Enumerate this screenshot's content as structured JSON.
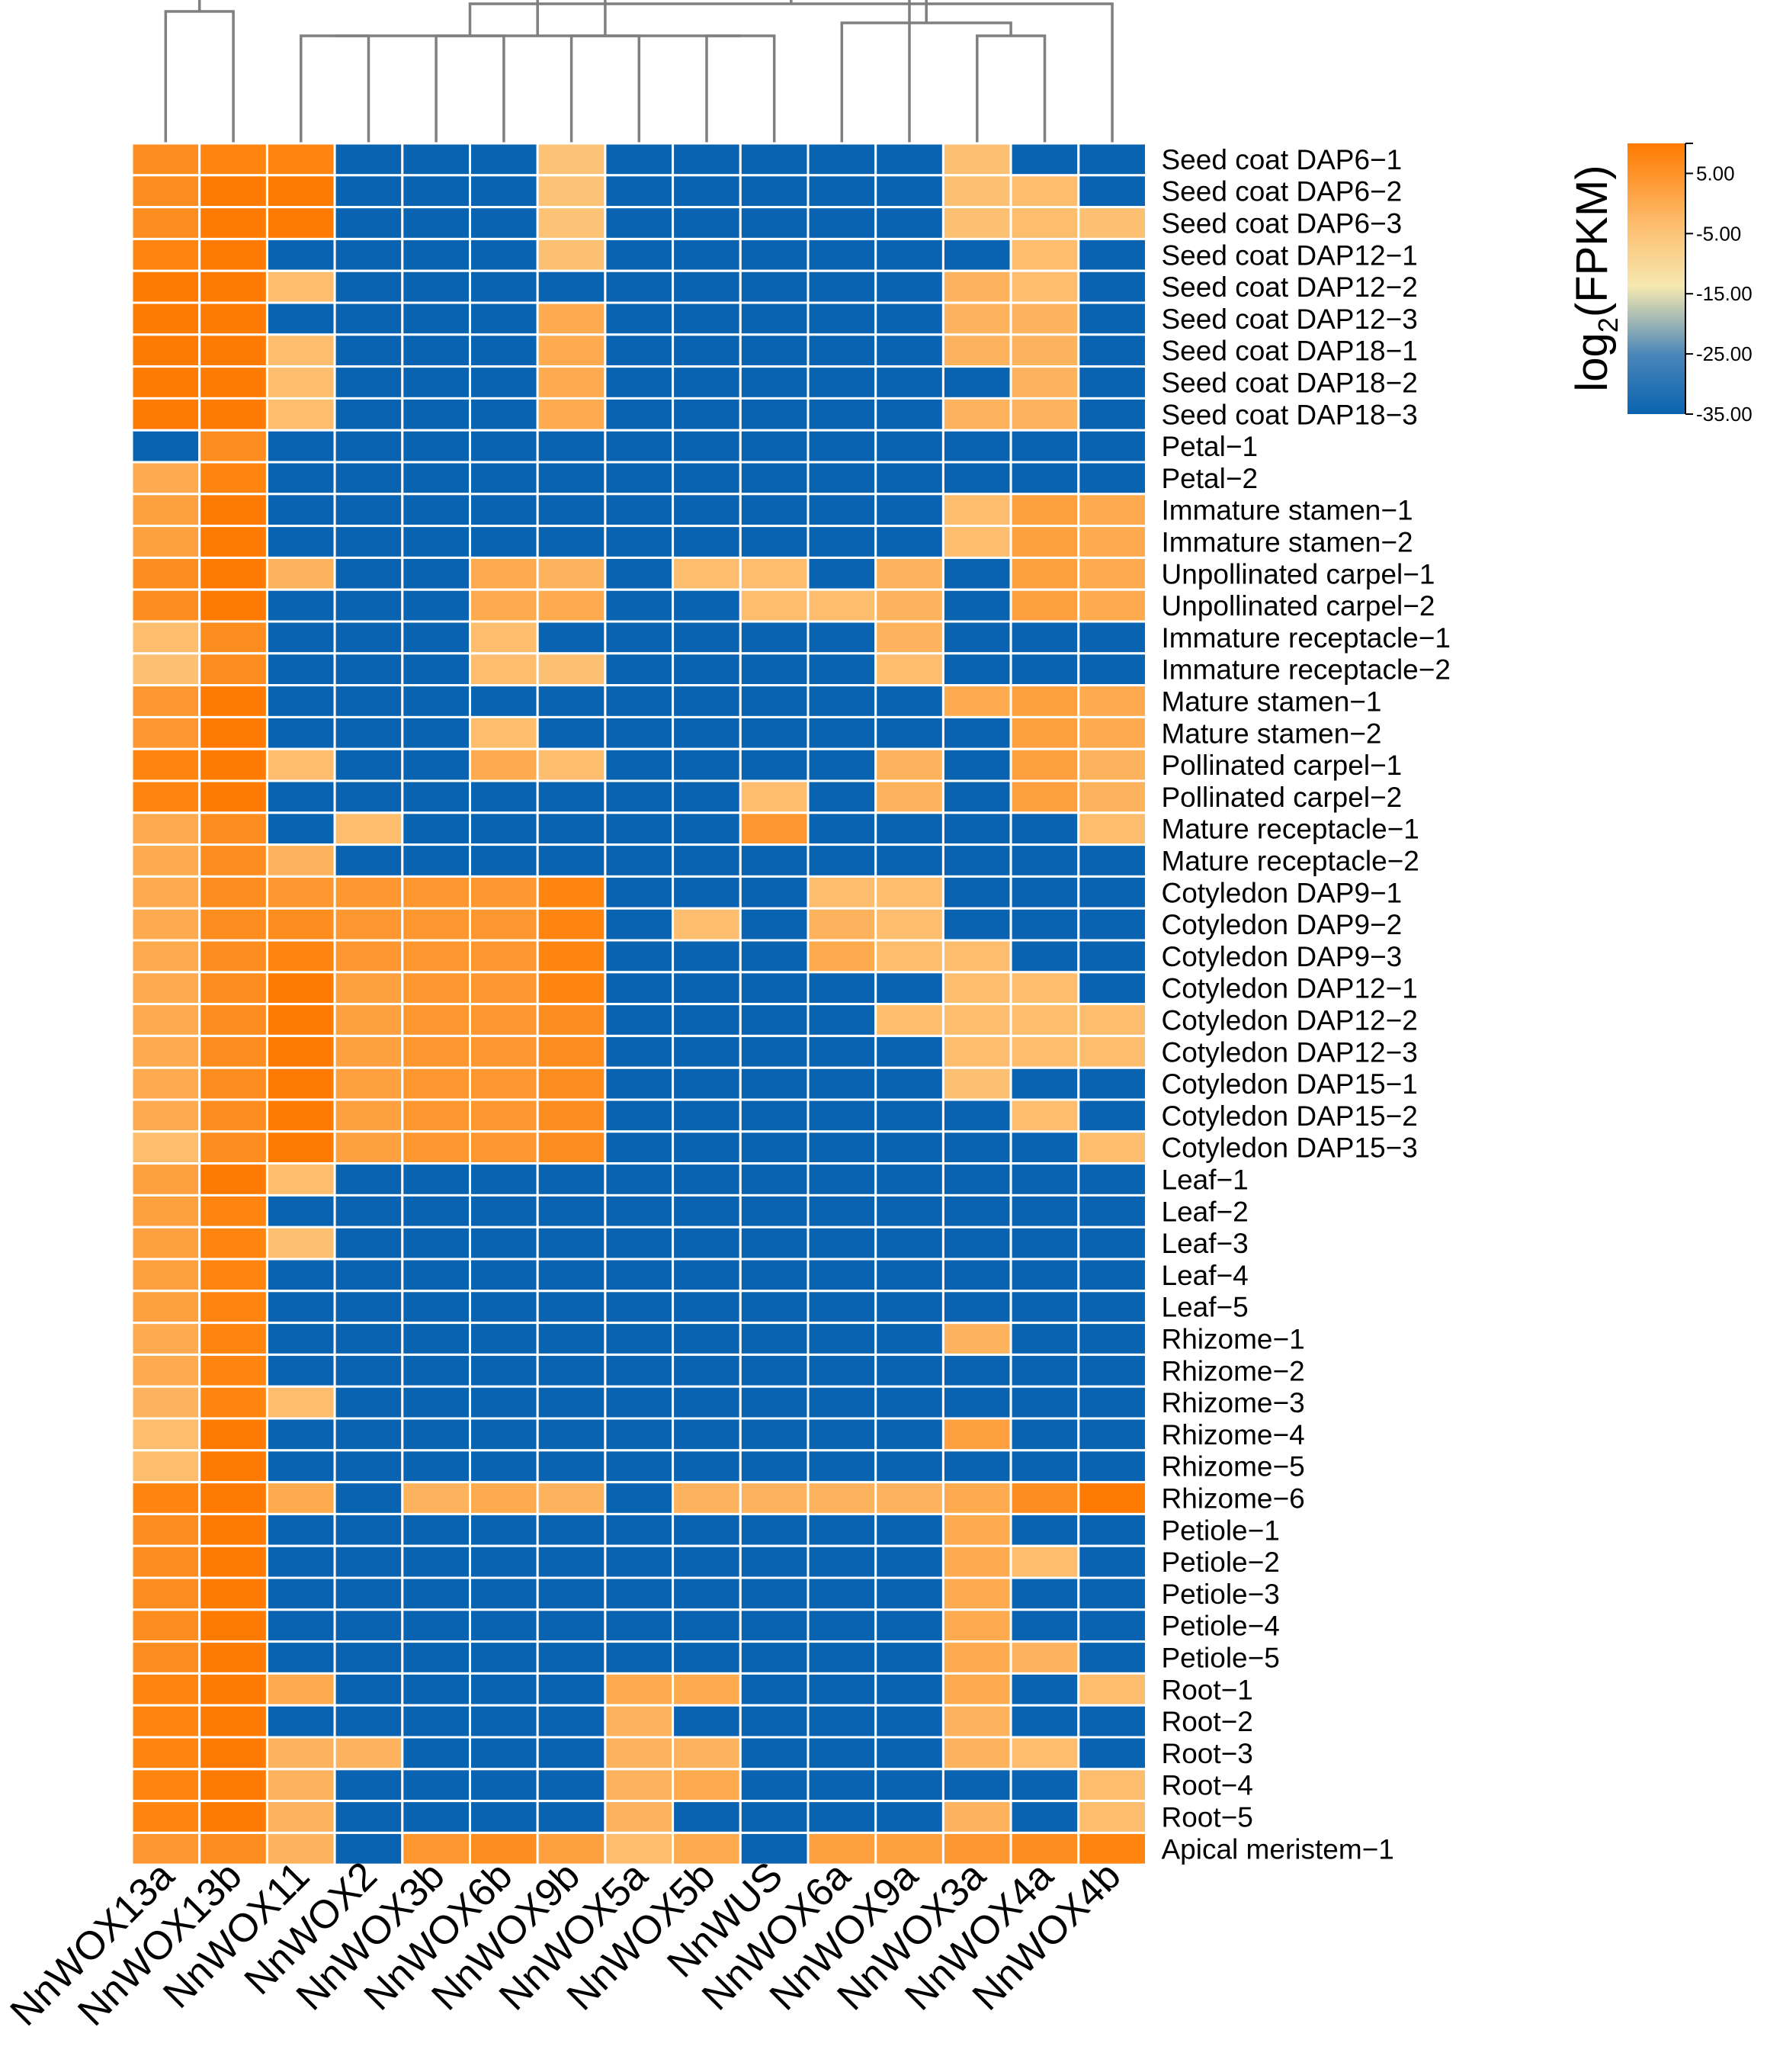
{
  "chart_data": {
    "type": "heatmap",
    "legend": {
      "title_prefix": "log",
      "title_sub": "2",
      "title_suffix": "(FPKM)",
      "ticks": [
        "5.00",
        "-5.00",
        "-15.00",
        "-25.00",
        "-35.00"
      ],
      "tick_values": [
        5,
        -5,
        -15,
        -25,
        -35
      ],
      "range": [
        -35,
        10
      ],
      "position": "top-right"
    },
    "colors": {
      "high": "#ff7a00",
      "mid_high": "#fdbd6e",
      "mid": "#f5e8b0",
      "mid_low": "#4a86b8",
      "low": "#0a63b0",
      "dendrogram": "#7f7f7f",
      "grid": "#ffffff"
    },
    "columns": [
      "NnWOX13a",
      "NnWOX13b",
      "NnWOX11",
      "NnWOX2",
      "NnWOX3b",
      "NnWOX6b",
      "NnWOX9b",
      "NnWOX5a",
      "NnWOX5b",
      "NnWUS",
      "NnWOX6a",
      "NnWOX9a",
      "NnWOX3a",
      "NnWOX4a",
      "NnWOX4b"
    ],
    "rows": [
      "Seed coat DAP6−1",
      "Seed coat DAP6−2",
      "Seed coat DAP6−3",
      "Seed coat DAP12−1",
      "Seed coat DAP12−2",
      "Seed coat DAP12−3",
      "Seed coat DAP18−1",
      "Seed coat DAP18−2",
      "Seed coat DAP18−3",
      "Petal−1",
      "Petal−2",
      "Immature stamen−1",
      "Immature stamen−2",
      "Unpollinated carpel−1",
      "Unpollinated carpel−2",
      "Immature receptacle−1",
      "Immature receptacle−2",
      "Mature stamen−1",
      "Mature stamen−2",
      "Pollinated carpel−1",
      "Pollinated carpel−2",
      "Mature receptacle−1",
      "Mature receptacle−2",
      "Cotyledon DAP9−1",
      "Cotyledon DAP9−2",
      "Cotyledon DAP9−3",
      "Cotyledon DAP12−1",
      "Cotyledon DAP12−2",
      "Cotyledon DAP12−3",
      "Cotyledon DAP15−1",
      "Cotyledon DAP15−2",
      "Cotyledon DAP15−3",
      "Leaf−1",
      "Leaf−2",
      "Leaf−3",
      "Leaf−4",
      "Leaf−5",
      "Rhizome−1",
      "Rhizome−2",
      "Rhizome−3",
      "Rhizome−4",
      "Rhizome−5",
      "Rhizome−6",
      "Petiole−1",
      "Petiole−2",
      "Petiole−3",
      "Petiole−4",
      "Petiole−5",
      "Root−1",
      "Root−2",
      "Root−3",
      "Root−4",
      "Root−5",
      "Apical meristem−1"
    ],
    "values": [
      [
        5,
        6,
        6,
        -35,
        -35,
        -35,
        -2,
        -35,
        -35,
        -35,
        -35,
        -35,
        -1,
        -35,
        -35
      ],
      [
        5,
        7,
        7,
        -35,
        -35,
        -35,
        -2,
        -35,
        -35,
        -35,
        -35,
        -35,
        -1,
        0,
        -35
      ],
      [
        5,
        7,
        7,
        -35,
        -35,
        -35,
        -2,
        -35,
        -35,
        -35,
        -35,
        -35,
        -1,
        0,
        -1
      ],
      [
        6,
        7,
        -35,
        -35,
        -35,
        -35,
        -1,
        -35,
        -35,
        -35,
        -35,
        -35,
        -35,
        0,
        -35
      ],
      [
        7,
        7,
        0,
        -35,
        -35,
        -35,
        -35,
        -35,
        -35,
        -35,
        -35,
        -35,
        1,
        0,
        -35
      ],
      [
        7,
        7,
        -35,
        -35,
        -35,
        -35,
        2,
        -35,
        -35,
        -35,
        -35,
        -35,
        1,
        1,
        -35
      ],
      [
        7,
        7,
        0,
        -35,
        -35,
        -35,
        2,
        -35,
        -35,
        -35,
        -35,
        -35,
        1,
        1,
        -35
      ],
      [
        7,
        7,
        0,
        -35,
        -35,
        -35,
        2,
        -35,
        -35,
        -35,
        -35,
        -35,
        -35,
        1,
        -35
      ],
      [
        7,
        7,
        0,
        -35,
        -35,
        -35,
        2,
        -35,
        -35,
        -35,
        -35,
        -35,
        1,
        1,
        -35
      ],
      [
        -35,
        5,
        -35,
        -35,
        -35,
        -35,
        -35,
        -35,
        -35,
        -35,
        -35,
        -35,
        -35,
        -35,
        -35
      ],
      [
        2,
        6,
        -35,
        -35,
        -35,
        -35,
        -35,
        -35,
        -35,
        -35,
        -35,
        -35,
        -35,
        -35,
        -35
      ],
      [
        3,
        7,
        -35,
        -35,
        -35,
        -35,
        -35,
        -35,
        -35,
        -35,
        -35,
        -35,
        0,
        3,
        2
      ],
      [
        3,
        7,
        -35,
        -35,
        -35,
        -35,
        -35,
        -35,
        -35,
        -35,
        -35,
        -35,
        0,
        3,
        2
      ],
      [
        5,
        7,
        1,
        -35,
        -35,
        2,
        1,
        -35,
        0,
        0,
        -35,
        1,
        -35,
        3,
        2
      ],
      [
        5,
        7,
        -35,
        -35,
        -35,
        2,
        2,
        -35,
        -35,
        0,
        0,
        1,
        -35,
        3,
        2
      ],
      [
        0,
        5,
        -35,
        -35,
        -35,
        0,
        -35,
        -35,
        -35,
        -35,
        -35,
        1,
        -35,
        -35,
        -35
      ],
      [
        -1,
        5,
        -35,
        -35,
        -35,
        0,
        -1,
        -35,
        -35,
        -35,
        -35,
        0,
        -35,
        -35,
        -35
      ],
      [
        4,
        7,
        -35,
        -35,
        -35,
        -35,
        -35,
        -35,
        -35,
        -35,
        -35,
        -35,
        2,
        3,
        2
      ],
      [
        4,
        7,
        -35,
        -35,
        -35,
        0,
        -35,
        -35,
        -35,
        -35,
        -35,
        -35,
        -35,
        3,
        2
      ],
      [
        6,
        7,
        0,
        -35,
        -35,
        2,
        0,
        -35,
        -35,
        -35,
        -35,
        1,
        -35,
        3,
        1
      ],
      [
        6,
        7,
        -35,
        -35,
        -35,
        -35,
        -35,
        -35,
        -35,
        0,
        -35,
        1,
        -35,
        3,
        1
      ],
      [
        2,
        5,
        -35,
        0,
        -35,
        -35,
        -35,
        -35,
        -35,
        4,
        -35,
        -35,
        -35,
        -35,
        0
      ],
      [
        2,
        5,
        1,
        -35,
        -35,
        -35,
        -35,
        -35,
        -35,
        -35,
        -35,
        -35,
        -35,
        -35,
        -35
      ],
      [
        2,
        5,
        4,
        4,
        4,
        4,
        6,
        -35,
        -35,
        -35,
        0,
        0,
        -35,
        -35,
        -35
      ],
      [
        2,
        5,
        5,
        4,
        4,
        4,
        6,
        -35,
        0,
        -35,
        1,
        0,
        -35,
        -35,
        -35
      ],
      [
        2,
        5,
        6,
        4,
        4,
        4,
        6,
        -35,
        -35,
        -35,
        2,
        0,
        0,
        -35,
        -35
      ],
      [
        2,
        5,
        7,
        3,
        4,
        4,
        6,
        -35,
        -35,
        -35,
        -35,
        -35,
        0,
        0,
        -35
      ],
      [
        2,
        5,
        7,
        3,
        4,
        4,
        5,
        -35,
        -35,
        -35,
        -35,
        0,
        0,
        0,
        0
      ],
      [
        2,
        5,
        7,
        3,
        4,
        4,
        5,
        -35,
        -35,
        -35,
        -35,
        -35,
        0,
        0,
        0
      ],
      [
        2,
        5,
        7,
        3,
        4,
        4,
        5,
        -35,
        -35,
        -35,
        -35,
        -35,
        -1,
        -35,
        -35
      ],
      [
        2,
        5,
        7,
        3,
        4,
        4,
        5,
        -35,
        -35,
        -35,
        -35,
        -35,
        -35,
        0,
        -35
      ],
      [
        0,
        5,
        7,
        3,
        4,
        4,
        5,
        -35,
        -35,
        -35,
        -35,
        -35,
        -35,
        -35,
        0
      ],
      [
        3,
        7,
        0,
        -35,
        -35,
        -35,
        -35,
        -35,
        -35,
        -35,
        -35,
        -35,
        -35,
        -35,
        -35
      ],
      [
        3,
        6,
        -35,
        -35,
        -35,
        -35,
        -35,
        -35,
        -35,
        -35,
        -35,
        -35,
        -35,
        -35,
        -35
      ],
      [
        3,
        6,
        -1,
        -35,
        -35,
        -35,
        -35,
        -35,
        -35,
        -35,
        -35,
        -35,
        -35,
        -35,
        -35
      ],
      [
        3,
        6,
        -35,
        -35,
        -35,
        -35,
        -35,
        -35,
        -35,
        -35,
        -35,
        -35,
        -35,
        -35,
        -35
      ],
      [
        3,
        6,
        -35,
        -35,
        -35,
        -35,
        -35,
        -35,
        -35,
        -35,
        -35,
        -35,
        -35,
        -35,
        -35
      ],
      [
        2,
        6,
        -35,
        -35,
        -35,
        -35,
        -35,
        -35,
        -35,
        -35,
        -35,
        -35,
        1,
        -35,
        -35
      ],
      [
        2,
        6,
        -35,
        -35,
        -35,
        -35,
        -35,
        -35,
        -35,
        -35,
        -35,
        -35,
        -35,
        -35,
        -35
      ],
      [
        1,
        6,
        0,
        -35,
        -35,
        -35,
        -35,
        -35,
        -35,
        -35,
        -35,
        -35,
        -35,
        -35,
        -35
      ],
      [
        0,
        7,
        -35,
        -35,
        -35,
        -35,
        -35,
        -35,
        -35,
        -35,
        -35,
        -35,
        3,
        -35,
        -35
      ],
      [
        0,
        7,
        -35,
        -35,
        -35,
        -35,
        -35,
        -35,
        -35,
        -35,
        -35,
        -35,
        -35,
        -35,
        -35
      ],
      [
        6,
        7,
        2,
        -35,
        1,
        2,
        1,
        -35,
        1,
        1,
        1,
        1,
        2,
        5,
        7
      ],
      [
        5,
        7,
        -35,
        -35,
        -35,
        -35,
        -35,
        -35,
        -35,
        -35,
        -35,
        -35,
        2,
        -35,
        -35
      ],
      [
        5,
        7,
        -35,
        -35,
        -35,
        -35,
        -35,
        -35,
        -35,
        -35,
        -35,
        -35,
        2,
        0,
        -35
      ],
      [
        5,
        7,
        -35,
        -35,
        -35,
        -35,
        -35,
        -35,
        -35,
        -35,
        -35,
        -35,
        2,
        -35,
        -35
      ],
      [
        5,
        7,
        -35,
        -35,
        -35,
        -35,
        -35,
        -35,
        -35,
        -35,
        -35,
        -35,
        2,
        -35,
        -35
      ],
      [
        5,
        7,
        -35,
        -35,
        -35,
        -35,
        -35,
        -35,
        -35,
        -35,
        -35,
        -35,
        2,
        1,
        -35
      ],
      [
        6,
        7,
        2,
        -35,
        -35,
        -35,
        -35,
        2,
        2,
        -35,
        -35,
        -35,
        2,
        -35,
        0
      ],
      [
        6,
        7,
        -35,
        -35,
        -35,
        -35,
        -35,
        1,
        -35,
        -35,
        -35,
        -35,
        1,
        -35,
        -35
      ],
      [
        6,
        7,
        1,
        1,
        -35,
        -35,
        -35,
        1,
        1,
        -35,
        -35,
        -35,
        1,
        0,
        -35
      ],
      [
        6,
        7,
        1,
        -35,
        -35,
        -35,
        -35,
        1,
        2,
        -35,
        -35,
        -35,
        -35,
        -35,
        0
      ],
      [
        6,
        7,
        1,
        -35,
        -35,
        -35,
        -35,
        1,
        -35,
        -35,
        -35,
        -35,
        1,
        -35,
        0
      ],
      [
        4,
        5,
        1,
        -35,
        4,
        5,
        3,
        0,
        2,
        -35,
        3,
        3,
        4,
        5,
        6
      ]
    ],
    "dendrogram": [
      [
        9,
        10
      ],
      [
        3,
        4
      ],
      [
        5,
        6
      ],
      [
        16,
        17
      ],
      [
        13,
        14
      ],
      [
        7,
        8
      ],
      [
        11,
        20
      ],
      [
        1,
        2
      ],
      [
        18,
        15
      ],
      [
        21,
        19
      ],
      [
        22,
        12
      ],
      [
        23,
        24
      ],
      [
        25,
        26
      ],
      [
        27,
        28
      ]
    ]
  }
}
